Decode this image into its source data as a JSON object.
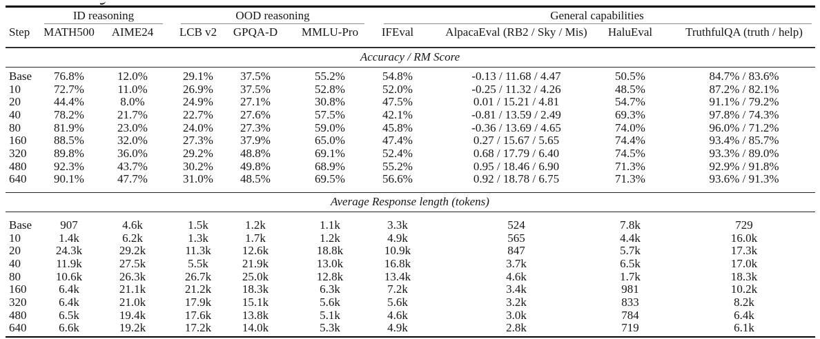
{
  "colors": {
    "background": "#ffffff",
    "text": "#161616",
    "rule_heavy": "#000000",
    "rule_mid": "#2e2e2e",
    "rule_thin": "#222222",
    "cmidrule": "#8a8a8a"
  },
  "table": {
    "groups": [
      {
        "label": "ID reasoning",
        "span_columns": [
          "MATH500",
          "AIME24"
        ]
      },
      {
        "label": "OOD reasoning",
        "span_columns": [
          "LCB v2",
          "GPQA-D",
          "MMLU-Pro"
        ]
      },
      {
        "label": "General capabilities",
        "span_columns": [
          "IFEval",
          "AlpacaEval (RB2 / Sky / Mis)",
          "HaluEval",
          "TruthfulQA (truth / help)"
        ]
      }
    ],
    "columns": [
      "Step",
      "MATH500",
      "AIME24",
      "LCB v2",
      "GPQA-D",
      "MMLU-Pro",
      "IFEval",
      "AlpacaEval (RB2 / Sky / Mis)",
      "HaluEval",
      "TruthfulQA (truth / help)"
    ],
    "sections": [
      {
        "title": "Accuracy / RM Score",
        "rows": [
          [
            "Base",
            "76.8%",
            "12.0%",
            "29.1%",
            "37.5%",
            "55.2%",
            "54.8%",
            "-0.13 / 11.68 / 4.47",
            "50.5%",
            "84.7% / 83.6%"
          ],
          [
            "10",
            "72.7%",
            "11.0%",
            "26.9%",
            "37.5%",
            "52.8%",
            "52.0%",
            "-0.25 / 11.32 / 4.26",
            "48.5%",
            "87.2% / 82.1%"
          ],
          [
            "20",
            "44.4%",
            "8.0%",
            "24.9%",
            "27.1%",
            "30.8%",
            "47.5%",
            "0.01 / 15.21 / 4.81",
            "54.7%",
            "91.1% / 79.2%"
          ],
          [
            "40",
            "78.2%",
            "21.7%",
            "22.7%",
            "27.6%",
            "57.5%",
            "42.1%",
            "-0.81 / 13.59 / 2.49",
            "69.3%",
            "97.8% / 74.3%"
          ],
          [
            "80",
            "81.9%",
            "23.0%",
            "24.0%",
            "27.3%",
            "59.0%",
            "45.8%",
            "-0.36 / 13.69 / 4.65",
            "74.0%",
            "96.0% / 71.2%"
          ],
          [
            "160",
            "88.5%",
            "32.0%",
            "27.3%",
            "37.9%",
            "65.0%",
            "47.4%",
            "0.27 / 15.67 / 5.65",
            "74.4%",
            "93.4% / 85.7%"
          ],
          [
            "320",
            "89.8%",
            "36.0%",
            "29.2%",
            "48.8%",
            "69.1%",
            "52.4%",
            "0.68 / 17.79 / 6.40",
            "74.5%",
            "93.3% / 89.0%"
          ],
          [
            "480",
            "92.3%",
            "43.7%",
            "30.2%",
            "49.8%",
            "68.9%",
            "55.2%",
            "0.95 / 18.46 / 6.90",
            "71.3%",
            "92.9% / 91.8%"
          ],
          [
            "640",
            "90.1%",
            "47.7%",
            "31.0%",
            "48.5%",
            "69.5%",
            "56.6%",
            "0.92 / 18.78 / 6.75",
            "71.3%",
            "93.6% / 91.3%"
          ]
        ]
      },
      {
        "title": "Average Response length (tokens)",
        "rows": [
          [
            "Base",
            "907",
            "4.6k",
            "1.5k",
            "1.2k",
            "1.1k",
            "3.3k",
            "524",
            "7.8k",
            "729"
          ],
          [
            "10",
            "1.4k",
            "6.2k",
            "1.3k",
            "1.7k",
            "1.2k",
            "4.9k",
            "565",
            "4.4k",
            "16.0k"
          ],
          [
            "20",
            "24.3k",
            "29.2k",
            "11.3k",
            "12.6k",
            "18.8k",
            "10.9k",
            "847",
            "5.7k",
            "17.3k"
          ],
          [
            "40",
            "11.9k",
            "27.5k",
            "5.5k",
            "21.9k",
            "13.0k",
            "16.8k",
            "3.7k",
            "6.5k",
            "17.0k"
          ],
          [
            "80",
            "10.6k",
            "26.3k",
            "26.7k",
            "25.0k",
            "12.8k",
            "13.4k",
            "4.6k",
            "1.7k",
            "18.3k"
          ],
          [
            "160",
            "6.4k",
            "21.1k",
            "21.2k",
            "18.3k",
            "6.3k",
            "7.2k",
            "3.4k",
            "981",
            "10.2k"
          ],
          [
            "320",
            "6.4k",
            "21.0k",
            "17.9k",
            "15.1k",
            "5.6k",
            "5.6k",
            "3.2k",
            "833",
            "8.2k"
          ],
          [
            "480",
            "6.5k",
            "19.4k",
            "17.6k",
            "13.8k",
            "5.1k",
            "4.6k",
            "3.0k",
            "784",
            "6.4k"
          ],
          [
            "640",
            "6.6k",
            "19.2k",
            "17.2k",
            "14.0k",
            "5.3k",
            "4.9k",
            "2.8k",
            "719",
            "6.1k"
          ]
        ]
      }
    ]
  }
}
